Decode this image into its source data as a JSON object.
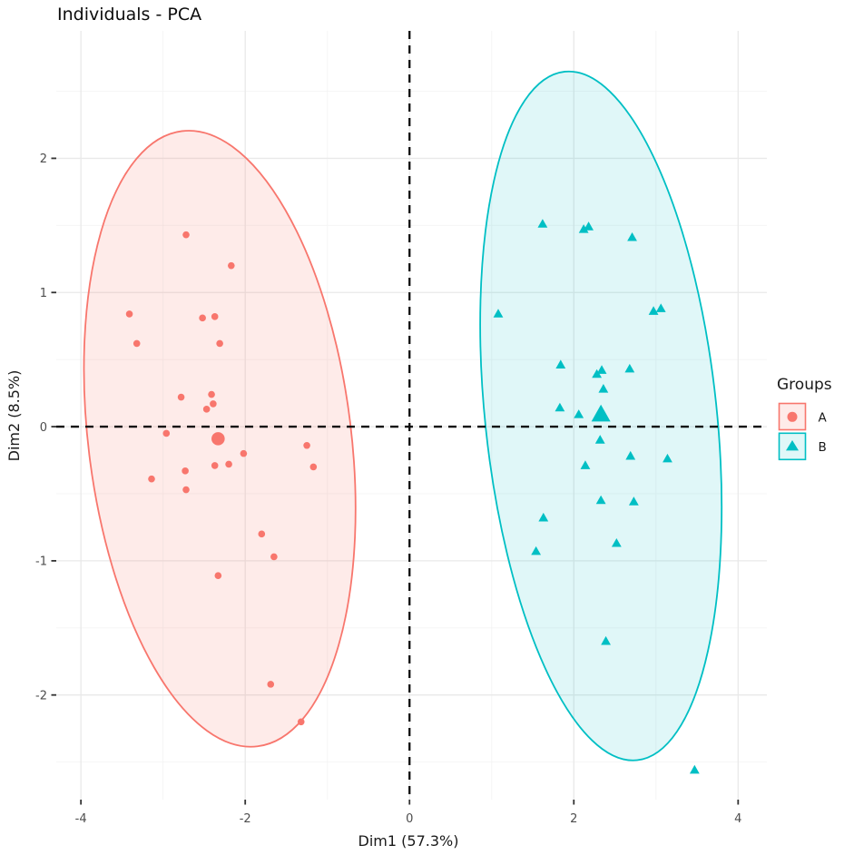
{
  "title": "Individuals - PCA",
  "colors": {
    "group_a": "#F8766D",
    "group_b": "#00BFC4",
    "grid_major": "#E9E9E9",
    "grid_minor": "#F4F4F4",
    "tick_text": "#4d4d4d",
    "axis_text": "#1a1a1a",
    "reference_line": "#0d0d0d",
    "background": "#FFFFFF"
  },
  "legend": {
    "title": "Groups",
    "position": "right",
    "items": [
      {
        "label": "A",
        "shape": "circle"
      },
      {
        "label": "B",
        "shape": "triangle"
      }
    ]
  },
  "chart_data": {
    "type": "scatter",
    "title": "Individuals - PCA",
    "xlabel": "Dim1 (57.3%)",
    "ylabel": "Dim2 (8.5%)",
    "xlim": [
      -4.3,
      4.35
    ],
    "ylim": [
      -2.78,
      2.95
    ],
    "xticks": [
      -4,
      -2,
      0,
      2,
      4
    ],
    "yticks": [
      -2,
      -1,
      0,
      1,
      2
    ],
    "minor_xticks": [
      -3,
      -1,
      1,
      3
    ],
    "minor_yticks": [
      -2.5,
      -1.5,
      -0.5,
      0.5,
      1.5,
      2.5
    ],
    "grid": true,
    "legend_title": "Groups",
    "legend_position": "right",
    "reference_lines": {
      "x": 0,
      "y": 0,
      "style": "dashed"
    },
    "series": [
      {
        "name": "A",
        "marker": "circle",
        "color": "#F8766D",
        "fill_opacity": 0.15,
        "points": [
          [
            -2.72,
            1.43
          ],
          [
            -2.17,
            1.2
          ],
          [
            -3.41,
            0.84
          ],
          [
            -2.52,
            0.81
          ],
          [
            -2.37,
            0.82
          ],
          [
            -3.32,
            0.62
          ],
          [
            -2.31,
            0.62
          ],
          [
            -2.78,
            0.22
          ],
          [
            -2.41,
            0.24
          ],
          [
            -2.39,
            0.17
          ],
          [
            -2.47,
            0.13
          ],
          [
            -2.96,
            -0.05
          ],
          [
            -2.02,
            -0.2
          ],
          [
            -1.25,
            -0.14
          ],
          [
            -2.37,
            -0.29
          ],
          [
            -2.2,
            -0.28
          ],
          [
            -1.17,
            -0.3
          ],
          [
            -2.73,
            -0.33
          ],
          [
            -3.14,
            -0.39
          ],
          [
            -2.72,
            -0.47
          ],
          [
            -1.8,
            -0.8
          ],
          [
            -1.65,
            -0.97
          ],
          [
            -2.33,
            -1.11
          ],
          [
            -1.69,
            -1.92
          ],
          [
            -1.32,
            -2.2
          ]
        ],
        "centroid": [
          -2.33,
          -0.09
        ],
        "ellipse": {
          "cx": -2.31,
          "cy": -0.09,
          "rx": 1.6,
          "ry": 2.31,
          "angle": -7
        }
      },
      {
        "name": "B",
        "marker": "triangle",
        "color": "#00BFC4",
        "fill_opacity": 0.12,
        "points": [
          [
            1.62,
            1.51
          ],
          [
            2.12,
            1.47
          ],
          [
            2.18,
            1.49
          ],
          [
            2.71,
            1.41
          ],
          [
            1.08,
            0.84
          ],
          [
            2.97,
            0.86
          ],
          [
            3.06,
            0.88
          ],
          [
            1.84,
            0.46
          ],
          [
            2.34,
            0.42
          ],
          [
            2.28,
            0.39
          ],
          [
            2.68,
            0.43
          ],
          [
            2.36,
            0.28
          ],
          [
            1.83,
            0.14
          ],
          [
            2.06,
            0.09
          ],
          [
            2.32,
            -0.1
          ],
          [
            2.69,
            -0.22
          ],
          [
            3.14,
            -0.24
          ],
          [
            2.14,
            -0.29
          ],
          [
            2.33,
            -0.55
          ],
          [
            2.73,
            -0.56
          ],
          [
            1.63,
            -0.68
          ],
          [
            2.52,
            -0.87
          ],
          [
            1.54,
            -0.93
          ],
          [
            2.39,
            -1.6
          ],
          [
            3.47,
            -2.56
          ]
        ],
        "centroid": [
          2.33,
          0.09
        ],
        "ellipse": {
          "cx": 2.33,
          "cy": 0.08,
          "rx": 1.41,
          "ry": 2.58,
          "angle": -6
        }
      }
    ]
  }
}
